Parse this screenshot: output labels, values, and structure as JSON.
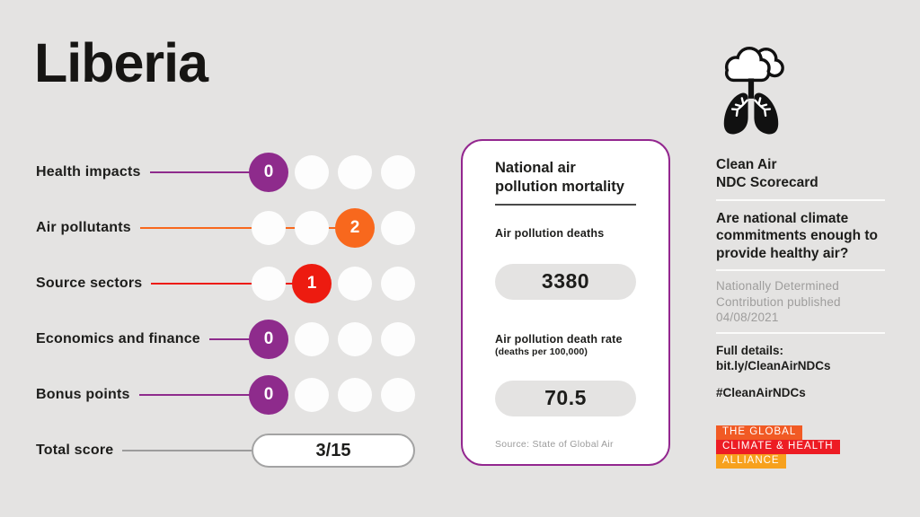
{
  "page": {
    "country": "Liberia",
    "background": "#e4e3e2"
  },
  "colors": {
    "purple": "#8e2b8c",
    "orange": "#f8681d",
    "red": "#ed1b10",
    "gray": "#9c9c9c",
    "card_border": "#93278f",
    "logo_orange": "#f15a24",
    "logo_red": "#ed1c24",
    "logo_amber": "#f7a11d"
  },
  "scorecard": {
    "dots_per_row": 4,
    "rows": [
      {
        "label": "Health impacts",
        "score": 0,
        "color_key": "purple"
      },
      {
        "label": "Air pollutants",
        "score": 2,
        "color_key": "orange"
      },
      {
        "label": "Source sectors",
        "score": 1,
        "color_key": "red"
      },
      {
        "label": "Economics and finance",
        "score": 0,
        "color_key": "purple"
      },
      {
        "label": "Bonus points",
        "score": 0,
        "color_key": "purple"
      }
    ],
    "total_label": "Total score",
    "total_value": "3/15"
  },
  "mortality_card": {
    "title": "National air pollution mortality",
    "deaths_label": "Air pollution deaths",
    "deaths_value": "3380",
    "rate_label": "Air pollution death rate",
    "rate_sublabel": "(deaths per 100,000)",
    "rate_value": "70.5",
    "source": "Source: State of Global Air"
  },
  "right_panel": {
    "icon": "cloud-lungs-icon",
    "brand_line1": "Clean Air",
    "brand_line2": "NDC Scorecard",
    "question": "Are national climate commitments enough to provide healthy air?",
    "ndc_note": "Nationally Determined Contribution published 04/08/2021",
    "full_details_label": "Full details:",
    "full_details_link": "bit.ly/CleanAirNDCs",
    "hashtag": "#CleanAirNDCs"
  },
  "logo": {
    "lines": [
      {
        "text": "THE GLOBAL",
        "color_key": "logo_orange"
      },
      {
        "text": "CLIMATE & HEALTH",
        "color_key": "logo_red"
      },
      {
        "text": "ALLIANCE",
        "color_key": "logo_amber"
      }
    ]
  },
  "chart_data": {
    "type": "bar",
    "title": "Liberia — Clean Air NDC Scorecard",
    "categories": [
      "Health impacts",
      "Air pollutants",
      "Source sectors",
      "Economics and finance",
      "Bonus points"
    ],
    "values": [
      0,
      2,
      1,
      0,
      0
    ],
    "ylim": [
      0,
      3
    ],
    "total_score": "3/15",
    "annotations": [
      "Air pollution deaths: 3380",
      "Air pollution death rate (deaths per 100,000): 70.5",
      "Source: State of Global Air",
      "Nationally Determined Contribution published 04/08/2021"
    ]
  }
}
